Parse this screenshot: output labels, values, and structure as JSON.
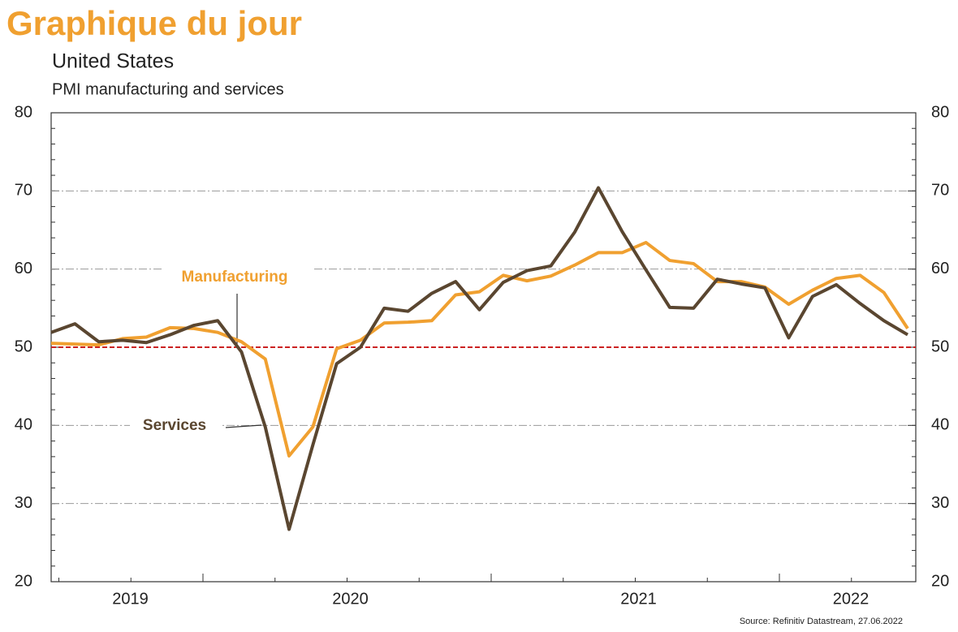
{
  "header": "Graphique du jour",
  "chart_data": {
    "type": "line",
    "title": "United States",
    "subtitle": "PMI manufacturing and services",
    "source": "Source: Refinitiv Datastream, 27.06.2022",
    "year_labels": [
      "2019",
      "2020",
      "2021",
      "2022"
    ],
    "ylim": [
      20,
      80
    ],
    "yticks": [
      20,
      30,
      40,
      50,
      60,
      70,
      80
    ],
    "y2lim": [
      20,
      80
    ],
    "y2ticks": [
      20,
      30,
      40,
      50,
      60,
      70,
      80
    ],
    "grid": true,
    "reference_line": 50,
    "reference_color": "#cc2222",
    "series": [
      {
        "name": "Manufacturing",
        "color": "#f0a030",
        "values": [
          50.5,
          50.4,
          50.3,
          51.1,
          51.3,
          52.5,
          52.4,
          51.9,
          50.7,
          48.5,
          36.1,
          39.8,
          49.8,
          50.9,
          53.1,
          53.2,
          53.4,
          56.7,
          57.1,
          59.2,
          58.5,
          59.1,
          60.5,
          62.1,
          62.1,
          63.4,
          61.1,
          60.7,
          58.4,
          58.4,
          57.7,
          55.5,
          57.3,
          58.8,
          59.2,
          57.0,
          52.4
        ]
      },
      {
        "name": "Services",
        "color": "#5a4630",
        "values": [
          51.9,
          53.0,
          50.7,
          50.9,
          50.6,
          51.6,
          52.8,
          53.4,
          49.4,
          39.8,
          26.7,
          37.5,
          47.9,
          50.0,
          55.0,
          54.6,
          56.9,
          58.4,
          54.8,
          58.3,
          59.8,
          60.4,
          64.7,
          70.4,
          64.8,
          59.9,
          55.1,
          55.0,
          58.7,
          58.1,
          57.6,
          51.2,
          56.5,
          58.0,
          55.6,
          53.4,
          51.6
        ]
      }
    ]
  }
}
